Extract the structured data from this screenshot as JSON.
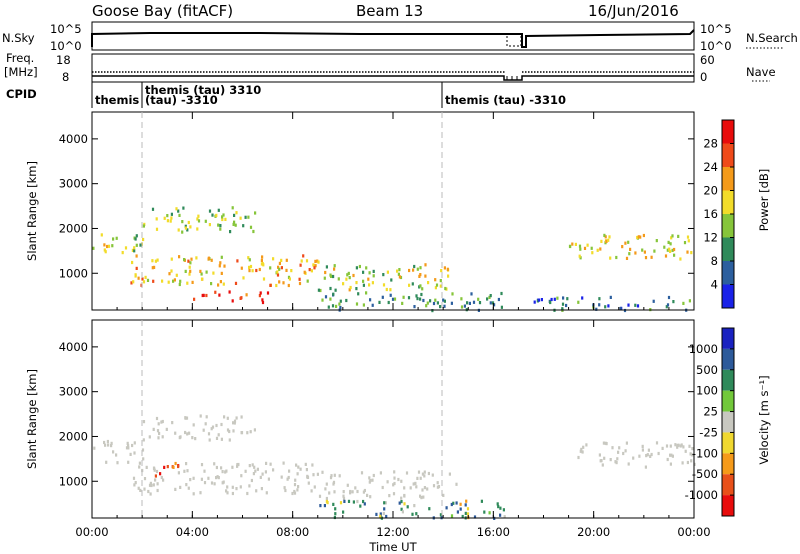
{
  "header": {
    "station": "Goose Bay (fitACF)",
    "beam": "Beam 13",
    "date": "16/Jun/2016"
  },
  "strip": {
    "nsky_label": "N.Sky",
    "nsky_ticks": [
      "10^5",
      "10^0"
    ],
    "nsearch_label": "N.Search",
    "nsearch_ticks": [
      "10^5",
      "10^0"
    ],
    "freq_label": "Freq.",
    "freq_unit": "[MHz]",
    "freq_ticks": [
      "18",
      "8"
    ],
    "nave_label": "Nave",
    "nave_ticks": [
      "60",
      "0"
    ],
    "cpid_label": "CPID",
    "cpid_segments": [
      {
        "x": 0.0,
        "label": "themis"
      },
      {
        "x": 2.0,
        "label": "themis (tau) 3310"
      },
      {
        "x": 2.0,
        "label": "(tau) -3310"
      },
      {
        "x": 14.0,
        "label": "themis (tau) -3310"
      }
    ]
  },
  "xaxis": {
    "label": "Time UT",
    "ticks": [
      "00:00",
      "04:00",
      "08:00",
      "12:00",
      "16:00",
      "20:00",
      "00:00"
    ]
  },
  "panels": [
    {
      "ylabel": "Slant Range [km]",
      "yticks": [
        "1000",
        "2000",
        "3000",
        "4000"
      ],
      "cbar_label": "Power [dB]",
      "cbar_ticks": [
        "4",
        "8",
        "12",
        "16",
        "20",
        "24",
        "28"
      ],
      "cbar_colors": [
        "#1a22e8",
        "#2c5f9e",
        "#2f8a5a",
        "#86c53a",
        "#f2dc2a",
        "#f49a1a",
        "#ef4a1a",
        "#e80c0c"
      ]
    },
    {
      "ylabel": "Slant Range [km]",
      "yticks": [
        "1000",
        "2000",
        "3000",
        "4000"
      ],
      "cbar_label": "Velocity [m s⁻¹]",
      "cbar_ticks": [
        "1000",
        "500",
        "100",
        "25",
        "-25",
        "-100",
        "-500",
        "-1000"
      ],
      "cbar_colors": [
        "#1a22c0",
        "#2d5a9a",
        "#2f8a5a",
        "#72c83a",
        "#c8c8c0",
        "#f0d830",
        "#f59a1a",
        "#e8501a",
        "#e80c0c"
      ]
    }
  ],
  "chart_data": [
    {
      "type": "heatmap",
      "title": "Goose Bay (fitACF) Beam 13 16/Jun/2016",
      "xlabel": "Time UT",
      "ylabel": "Slant Range [km]",
      "colorbar": "Power [dB]",
      "xlim": [
        0,
        24
      ],
      "ylim": [
        180,
        4600
      ],
      "clim": [
        0,
        30
      ],
      "echo_regions": [
        {
          "t0": 0.0,
          "t1": 2.0,
          "r0": 1450,
          "r1": 1950,
          "value": 16
        },
        {
          "t0": 2.0,
          "t1": 6.5,
          "r0": 1950,
          "r1": 2500,
          "value": 14
        },
        {
          "t0": 1.5,
          "t1": 9.0,
          "r0": 750,
          "r1": 1450,
          "value": 20
        },
        {
          "t0": 4.0,
          "t1": 7.0,
          "r0": 380,
          "r1": 620,
          "value": 26
        },
        {
          "t0": 9.0,
          "t1": 14.5,
          "r0": 650,
          "r1": 1250,
          "value": 16
        },
        {
          "t0": 9.0,
          "t1": 16.5,
          "r0": 200,
          "r1": 600,
          "value": 10
        },
        {
          "t0": 19.0,
          "t1": 24.0,
          "r0": 1350,
          "r1": 1900,
          "value": 18
        },
        {
          "t0": 17.5,
          "t1": 24.0,
          "r0": 200,
          "r1": 500,
          "value": 8
        }
      ]
    },
    {
      "type": "heatmap",
      "title": "",
      "xlabel": "Time UT",
      "ylabel": "Slant Range [km]",
      "colorbar": "Velocity [m s⁻¹]",
      "xlim": [
        0,
        24
      ],
      "ylim": [
        180,
        4600
      ],
      "clim": [
        -1000,
        1000
      ],
      "echo_regions": [
        {
          "t0": 0.0,
          "t1": 2.0,
          "r0": 1450,
          "r1": 1950,
          "value": 0
        },
        {
          "t0": 2.0,
          "t1": 6.5,
          "r0": 1950,
          "r1": 2500,
          "value": 0
        },
        {
          "t0": 1.5,
          "t1": 9.0,
          "r0": 750,
          "r1": 1450,
          "value": 0
        },
        {
          "t0": 2.5,
          "t1": 3.5,
          "r0": 1100,
          "r1": 1500,
          "value": -700
        },
        {
          "t0": 9.0,
          "t1": 14.5,
          "r0": 650,
          "r1": 1250,
          "value": 0
        },
        {
          "t0": 9.0,
          "t1": 16.5,
          "r0": 200,
          "r1": 600,
          "value": 300
        },
        {
          "t0": 19.0,
          "t1": 24.0,
          "r0": 1350,
          "r1": 1900,
          "value": 0
        }
      ]
    }
  ]
}
